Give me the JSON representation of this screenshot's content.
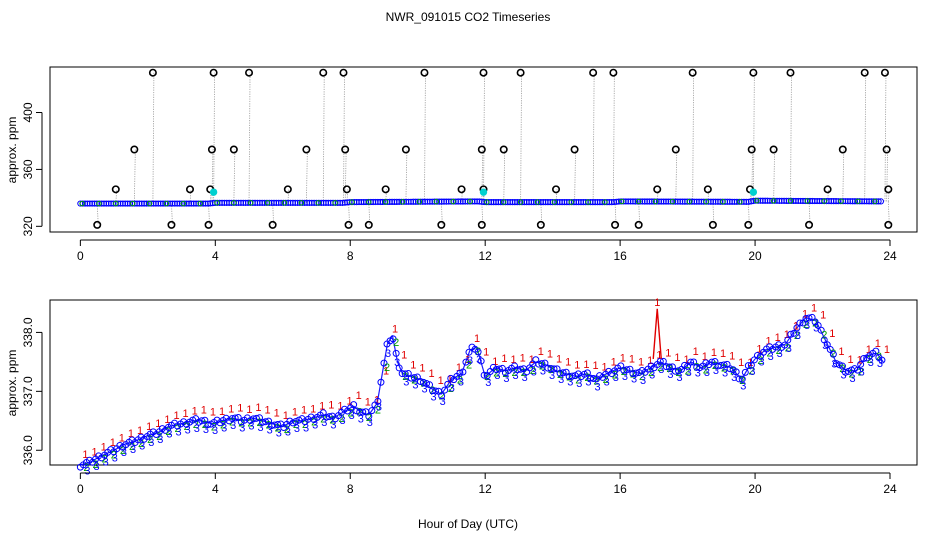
{
  "page": {
    "title": "NWR_091015  CO2 Timeseries",
    "xlabel": "Hour of Day (UTC)"
  },
  "colors": {
    "raw_point": "#000000",
    "flag1": "#e00000",
    "flag2": "#00a000",
    "flag3": "#0000ff",
    "base_line": "#1a1aff",
    "cyan_marker": "#00d0d0",
    "spike_line": "#9a9a9a"
  },
  "chart_data": [
    {
      "type": "scatter",
      "panel": "top",
      "title": "NWR_091015  CO2 Timeseries",
      "xlabel": "",
      "ylabel": "approx. ppm",
      "xlim": [
        -0.9,
        24.8
      ],
      "ylim": [
        316,
        432
      ],
      "x_ticks": [
        0,
        4,
        8,
        12,
        16,
        20,
        24
      ],
      "y_ticks": [
        320,
        360,
        400
      ],
      "baseline_series": [
        {
          "x": 0.0,
          "y": 336.0
        },
        {
          "x": 2.0,
          "y": 336.0
        },
        {
          "x": 3.8,
          "y": 336.0
        },
        {
          "x": 4.0,
          "y": 336.5
        },
        {
          "x": 7.8,
          "y": 336.5
        },
        {
          "x": 8.0,
          "y": 337.0
        },
        {
          "x": 11.8,
          "y": 337.5
        },
        {
          "x": 12.0,
          "y": 337.0
        },
        {
          "x": 15.8,
          "y": 337.0
        },
        {
          "x": 16.0,
          "y": 337.5
        },
        {
          "x": 19.8,
          "y": 337.2
        },
        {
          "x": 20.0,
          "y": 338.0
        },
        {
          "x": 23.8,
          "y": 337.5
        }
      ],
      "outliers_high": [
        2.15,
        3.95,
        5.0,
        7.2,
        7.8,
        10.2,
        11.95,
        13.05,
        15.2,
        15.8,
        18.15,
        19.95,
        21.05,
        23.25,
        23.85
      ],
      "outliers_374": [
        1.6,
        3.9,
        4.55,
        6.7,
        7.85,
        9.65,
        11.9,
        12.55,
        14.65,
        17.65,
        19.9,
        20.55,
        22.6,
        23.9
      ],
      "outliers_346": [
        1.05,
        3.25,
        3.85,
        6.15,
        7.9,
        9.05,
        11.3,
        11.95,
        14.1,
        17.1,
        18.6,
        19.85,
        22.15,
        23.95
      ],
      "outliers_low": [
        0.5,
        2.7,
        3.8,
        5.7,
        7.95,
        8.55,
        10.7,
        11.9,
        13.65,
        15.85,
        16.55,
        18.75,
        19.8,
        21.6,
        23.95
      ],
      "cyan_points": [
        {
          "x": 3.95,
          "y": 344
        },
        {
          "x": 11.95,
          "y": 344
        },
        {
          "x": 19.95,
          "y": 344
        }
      ],
      "values": {
        "high": 428,
        "mid": 374,
        "lowmid": 346,
        "low": 321
      }
    },
    {
      "type": "scatter",
      "panel": "bottom",
      "title": "",
      "xlabel": "Hour of Day (UTC)",
      "ylabel": "approx. ppm",
      "xlim": [
        -0.9,
        24.8
      ],
      "ylim": [
        335.75,
        338.55
      ],
      "x_ticks": [
        0,
        4,
        8,
        12,
        16,
        20,
        24
      ],
      "y_ticks": [
        336.0,
        337.0,
        338.0
      ],
      "series_points": [
        [
          0.0,
          335.75
        ],
        [
          0.3,
          335.8
        ],
        [
          0.6,
          335.9
        ],
        [
          1.0,
          336.0
        ],
        [
          1.3,
          336.1
        ],
        [
          1.6,
          336.15
        ],
        [
          2.0,
          336.25
        ],
        [
          2.3,
          336.3
        ],
        [
          2.6,
          336.4
        ],
        [
          3.0,
          336.45
        ],
        [
          3.3,
          336.5
        ],
        [
          3.6,
          336.5
        ],
        [
          3.9,
          336.45
        ],
        [
          4.2,
          336.5
        ],
        [
          4.5,
          336.55
        ],
        [
          4.8,
          336.5
        ],
        [
          5.1,
          336.55
        ],
        [
          5.4,
          336.5
        ],
        [
          5.7,
          336.45
        ],
        [
          6.0,
          336.4
        ],
        [
          6.3,
          336.5
        ],
        [
          6.6,
          336.5
        ],
        [
          6.9,
          336.55
        ],
        [
          7.2,
          336.6
        ],
        [
          7.5,
          336.55
        ],
        [
          7.8,
          336.65
        ],
        [
          8.1,
          336.75
        ],
        [
          8.3,
          336.65
        ],
        [
          8.55,
          336.6
        ],
        [
          8.8,
          336.8
        ],
        [
          8.95,
          337.3
        ],
        [
          9.1,
          337.8
        ],
        [
          9.25,
          337.95
        ],
        [
          9.4,
          337.5
        ],
        [
          9.55,
          337.3
        ],
        [
          9.8,
          337.25
        ],
        [
          10.1,
          337.2
        ],
        [
          10.4,
          337.05
        ],
        [
          10.7,
          336.95
        ],
        [
          11.0,
          337.2
        ],
        [
          11.3,
          337.3
        ],
        [
          11.55,
          337.7
        ],
        [
          11.75,
          337.75
        ],
        [
          12.0,
          337.25
        ],
        [
          12.3,
          337.4
        ],
        [
          12.6,
          337.35
        ],
        [
          12.9,
          337.4
        ],
        [
          13.2,
          337.35
        ],
        [
          13.5,
          337.5
        ],
        [
          13.8,
          337.45
        ],
        [
          14.1,
          337.35
        ],
        [
          14.4,
          337.3
        ],
        [
          14.7,
          337.25
        ],
        [
          15.0,
          337.3
        ],
        [
          15.3,
          337.2
        ],
        [
          15.6,
          337.3
        ],
        [
          16.0,
          337.4
        ],
        [
          16.3,
          337.35
        ],
        [
          16.6,
          337.3
        ],
        [
          16.9,
          337.4
        ],
        [
          17.2,
          337.5
        ],
        [
          17.5,
          337.4
        ],
        [
          17.8,
          337.35
        ],
        [
          18.1,
          337.5
        ],
        [
          18.4,
          337.4
        ],
        [
          18.7,
          337.5
        ],
        [
          19.0,
          337.45
        ],
        [
          19.3,
          337.4
        ],
        [
          19.6,
          337.2
        ],
        [
          19.8,
          337.4
        ],
        [
          20.0,
          337.55
        ],
        [
          20.3,
          337.7
        ],
        [
          20.6,
          337.75
        ],
        [
          20.9,
          337.8
        ],
        [
          21.2,
          338.05
        ],
        [
          21.5,
          338.25
        ],
        [
          21.8,
          338.2
        ],
        [
          22.1,
          337.85
        ],
        [
          22.4,
          337.5
        ],
        [
          22.7,
          337.35
        ],
        [
          23.0,
          337.35
        ],
        [
          23.3,
          337.6
        ],
        [
          23.6,
          337.65
        ],
        [
          23.8,
          337.5
        ]
      ],
      "spike": {
        "x": 17.1,
        "y_top": 338.55,
        "y_base": 337.55
      }
    }
  ],
  "flag_labels": {
    "one": "1",
    "two": "2",
    "three": "3"
  }
}
